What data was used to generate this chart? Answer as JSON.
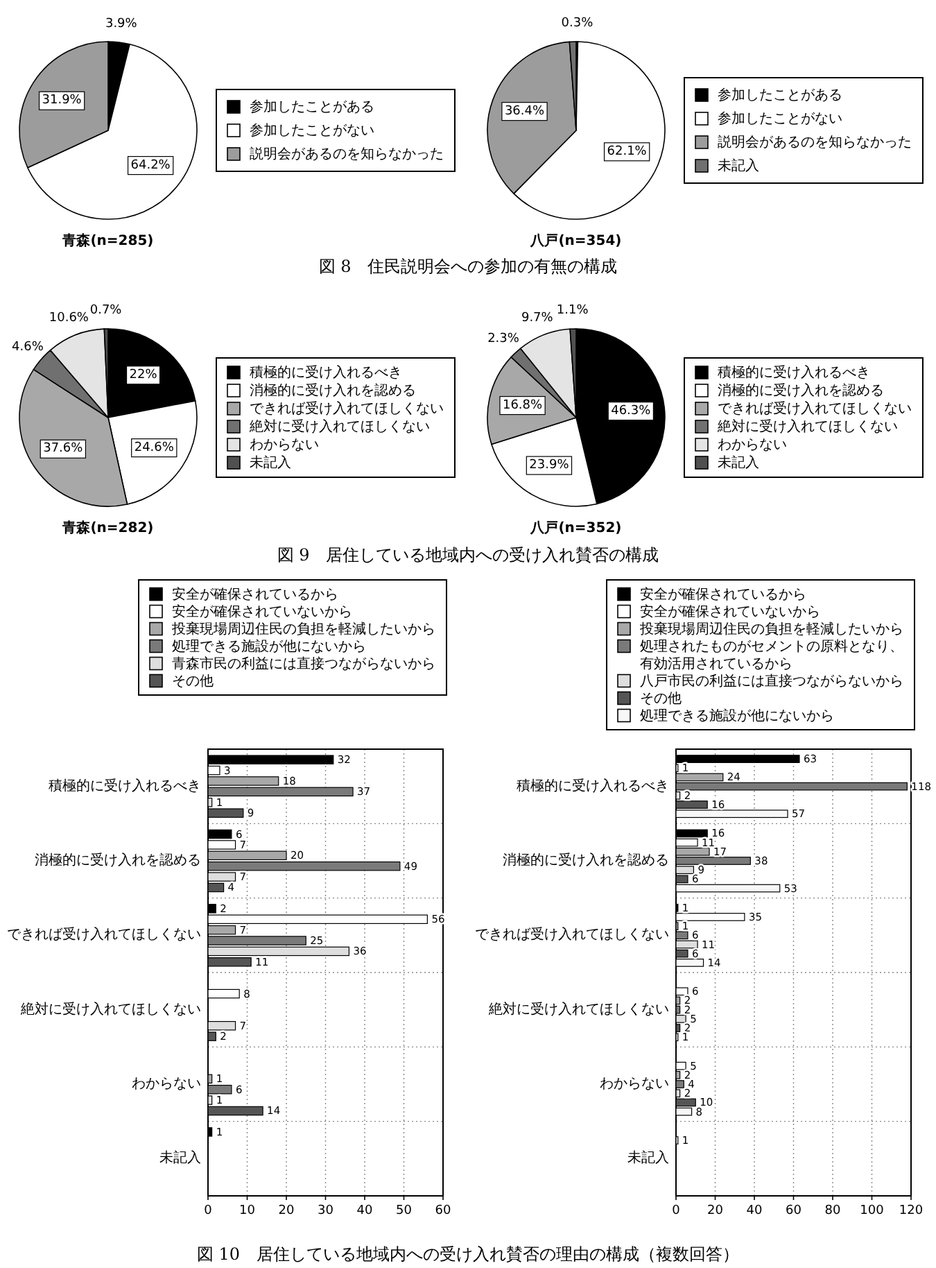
{
  "chart_data": [
    {
      "type": "pie",
      "categories": [
        "参加したことがある",
        "参加したことがない",
        "説明会があるのを知らなかった"
      ],
      "values": [
        3.9,
        64.2,
        31.9
      ],
      "colors": [
        "#000000",
        "#ffffff",
        "#9c9c9c"
      ],
      "value_labels": [
        "3.9%",
        "64.2%",
        "31.9%"
      ],
      "xlabel": "青森(n=285)",
      "legend": "right",
      "annotations": [
        "図 8　住民説明会への参加の有無の構成"
      ]
    },
    {
      "type": "pie",
      "categories": [
        "参加したことがある",
        "参加したことがない",
        "説明会があるのを知らなかった",
        "未記入"
      ],
      "values": [
        0.3,
        62.1,
        36.4,
        1.2
      ],
      "colors": [
        "#000000",
        "#ffffff",
        "#9c9c9c",
        "#707070"
      ],
      "value_labels": [
        "0.3%",
        "62.1%",
        "36.4%",
        null
      ],
      "xlabel": "八戸(n=354)",
      "legend": "right"
    },
    {
      "type": "pie",
      "categories": [
        "積極的に受け入れるべき",
        "消極的に受け入れを認める",
        "できれば受け入れてほしくない",
        "絶対に受け入れてほしくない",
        "わからない",
        "未記入"
      ],
      "values": [
        22,
        24.6,
        37.6,
        4.6,
        10.6,
        0.7
      ],
      "colors": [
        "#000000",
        "#ffffff",
        "#a8a8a8",
        "#707070",
        "#e4e4e4",
        "#505050"
      ],
      "value_labels": [
        "22%",
        "24.6%",
        "37.6%",
        "4.6%",
        "10.6%",
        "0.7%"
      ],
      "xlabel": "青森(n=282)",
      "legend": "right",
      "annotations": [
        "図 9　居住している地域内への受け入れ賛否の構成"
      ]
    },
    {
      "type": "pie",
      "categories": [
        "積極的に受け入れるべき",
        "消極的に受け入れを認める",
        "できれば受け入れてほしくない",
        "絶対に受け入れてほしくない",
        "わからない",
        "未記入"
      ],
      "values": [
        46.3,
        23.9,
        16.8,
        2.3,
        9.7,
        1.1
      ],
      "colors": [
        "#000000",
        "#ffffff",
        "#a8a8a8",
        "#707070",
        "#e4e4e4",
        "#505050"
      ],
      "value_labels": [
        "46.3%",
        "23.9%",
        "16.8%",
        "2.3%",
        "9.7%",
        "1.1%"
      ],
      "xlabel": "八戸(n=352)",
      "legend": "right"
    },
    {
      "type": "bar",
      "orientation": "horizontal",
      "categories": [
        "積極的に受け入れるべき",
        "消極的に受け入れを認める",
        "できれば受け入れてほしくない",
        "絶対に受け入れてほしくない",
        "わからない",
        "未記入"
      ],
      "series": [
        {
          "name": "安全が確保されているから",
          "color": "#000000",
          "values": [
            32,
            6,
            2,
            null,
            null,
            1
          ]
        },
        {
          "name": "安全が確保されていないから",
          "color": "#ffffff",
          "values": [
            3,
            7,
            56,
            8,
            null,
            null
          ]
        },
        {
          "name": "投棄現場周辺住民の負担を軽減したいから",
          "color": "#a8a8a8",
          "values": [
            18,
            20,
            7,
            null,
            1,
            null
          ]
        },
        {
          "name": "処理できる施設が他にないから",
          "color": "#7a7a7a",
          "values": [
            37,
            49,
            25,
            null,
            6,
            null
          ]
        },
        {
          "name": "青森市民の利益には直接つながらないから",
          "color": "#dedede",
          "values": [
            1,
            7,
            36,
            7,
            1,
            null
          ]
        },
        {
          "name": "その他",
          "color": "#555555",
          "values": [
            9,
            4,
            11,
            2,
            14,
            null
          ]
        }
      ],
      "xlim": [
        0,
        60
      ],
      "xticks": [
        0,
        10,
        20,
        30,
        40,
        50,
        60
      ],
      "grid": true,
      "legend": "top",
      "data_labels": true,
      "annotations": [
        "図 10　居住している地域内への受け入れ賛否の理由の構成（複数回答）"
      ]
    },
    {
      "type": "bar",
      "orientation": "horizontal",
      "categories": [
        "積極的に受け入れるべき",
        "消極的に受け入れを認める",
        "できれば受け入れてほしくない",
        "絶対に受け入れてほしくない",
        "わからない",
        "未記入"
      ],
      "series": [
        {
          "name": "安全が確保されているから",
          "color": "#000000",
          "values": [
            63,
            16,
            1,
            null,
            null,
            null
          ]
        },
        {
          "name": "安全が確保されていないから",
          "color": "#ffffff",
          "values": [
            1,
            11,
            35,
            6,
            5,
            1
          ]
        },
        {
          "name": "投棄現場周辺住民の負担を軽減したいから",
          "color": "#a8a8a8",
          "values": [
            24,
            17,
            1,
            2,
            2,
            null
          ]
        },
        {
          "name": "処理されたものがセメントの原料となり、有効活用されているから",
          "color": "#7a7a7a",
          "values": [
            118,
            38,
            6,
            2,
            4,
            null
          ]
        },
        {
          "name": "八戸市民の利益には直接つながらないから",
          "color": "#dedede",
          "values": [
            2,
            9,
            11,
            5,
            2,
            null
          ]
        },
        {
          "name": "その他",
          "color": "#555555",
          "values": [
            16,
            6,
            6,
            2,
            10,
            null
          ]
        },
        {
          "name": "処理できる施設が他にないから",
          "color": "#f8f8f8",
          "values": [
            57,
            53,
            14,
            1,
            8,
            null
          ]
        }
      ],
      "xlim": [
        0,
        120
      ],
      "xticks": [
        0,
        20,
        40,
        60,
        80,
        100,
        120
      ],
      "grid": true,
      "legend": "top",
      "data_labels": true
    }
  ]
}
